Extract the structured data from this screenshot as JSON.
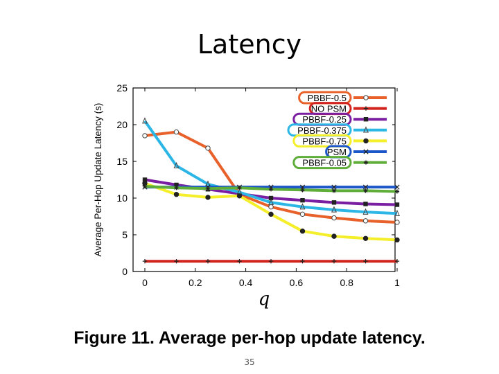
{
  "slide": {
    "title": "Latency",
    "caption": "Figure 11. Average per-hop update latency.",
    "page_number": "35"
  },
  "chart_data": {
    "type": "line",
    "title": "",
    "xlabel": "q",
    "ylabel": "Average Per-Hop Update Latency (s)",
    "xlim": [
      0,
      1
    ],
    "ylim": [
      0,
      25
    ],
    "x_ticks": [
      0,
      0.2,
      0.4,
      0.6,
      0.8,
      1
    ],
    "x_tick_labels": [
      "0",
      "0.2",
      "0.4",
      "0.6",
      "0.8",
      "1"
    ],
    "y_ticks": [
      0,
      5,
      10,
      15,
      20,
      25
    ],
    "y_tick_labels": [
      "0",
      "5",
      "10",
      "15",
      "20",
      "25"
    ],
    "x": [
      0,
      0.125,
      0.25,
      0.375,
      0.5,
      0.625,
      0.75,
      0.875,
      1
    ],
    "legend_position": "top-right",
    "series": [
      {
        "name": "PBBF-0.5",
        "color": "#e8602a",
        "marker": "circle",
        "values": [
          18.5,
          19.0,
          16.8,
          10.5,
          8.8,
          7.8,
          7.3,
          6.9,
          6.7
        ]
      },
      {
        "name": "NO PSM",
        "color": "#d2231e",
        "marker": "plus",
        "values": [
          1.4,
          1.4,
          1.4,
          1.4,
          1.4,
          1.4,
          1.4,
          1.4,
          1.4
        ]
      },
      {
        "name": "PBBF-0.25",
        "color": "#7a1fa2",
        "marker": "square",
        "values": [
          12.5,
          11.8,
          11.2,
          10.6,
          10.0,
          9.7,
          9.4,
          9.2,
          9.1
        ]
      },
      {
        "name": "PBBF-0.375",
        "color": "#2bb6e6",
        "marker": "triangle",
        "values": [
          20.5,
          14.4,
          11.9,
          10.8,
          9.4,
          8.8,
          8.4,
          8.1,
          7.9
        ]
      },
      {
        "name": "PBBF-0.75",
        "color": "#f4ef2a",
        "marker": "dot",
        "values": [
          12.0,
          10.5,
          10.1,
          10.3,
          7.8,
          5.5,
          4.8,
          4.5,
          4.3
        ]
      },
      {
        "name": "PSM",
        "color": "#1b57c9",
        "marker": "x",
        "values": [
          11.5,
          11.5,
          11.5,
          11.5,
          11.5,
          11.5,
          11.5,
          11.5,
          11.5
        ]
      },
      {
        "name": "PBBF-0.05",
        "color": "#5fae3a",
        "marker": "star",
        "values": [
          11.6,
          11.4,
          11.3,
          11.4,
          11.2,
          11.1,
          11.0,
          11.0,
          10.9
        ]
      }
    ]
  }
}
